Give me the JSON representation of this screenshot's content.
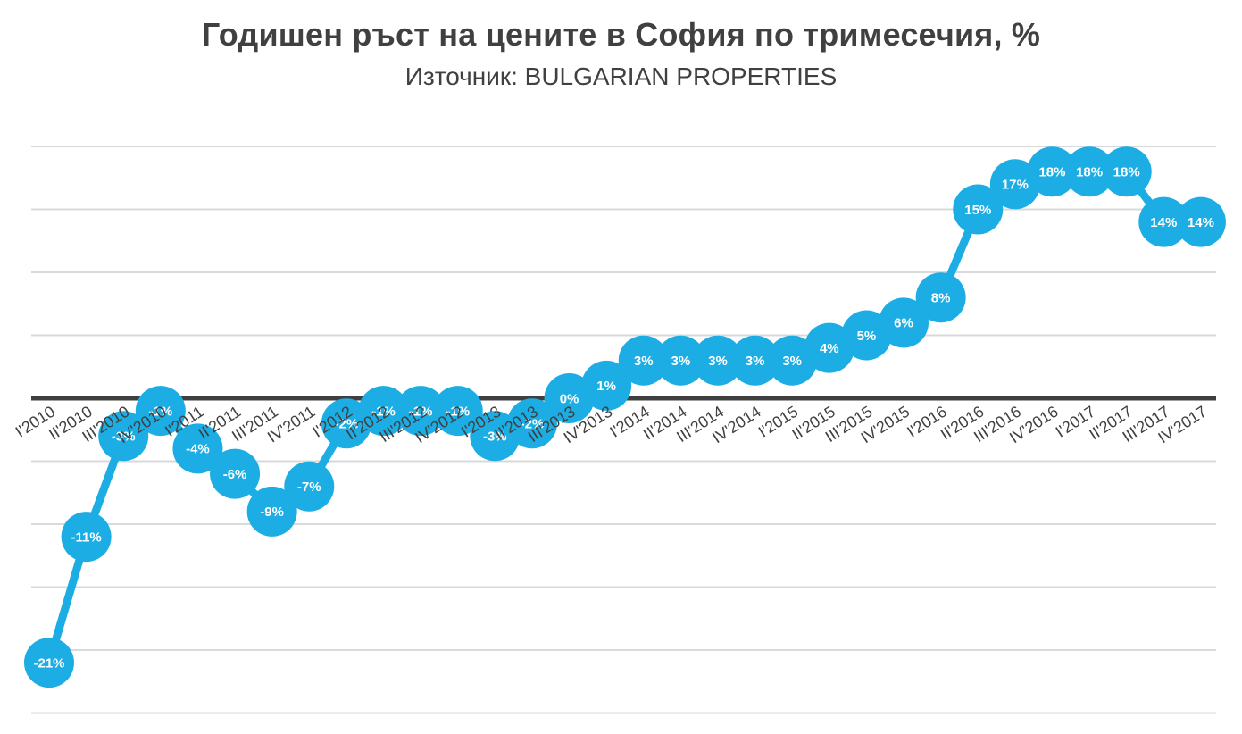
{
  "chart_data": {
    "type": "line",
    "title": "Годишен ръст на цените в София по тримесечия, %",
    "subtitle": "Източник: BULGARIAN PROPERTIES",
    "categories": [
      "I'2010",
      "II'2010",
      "III'2010",
      "IV'2010",
      "I'2011",
      "II'2011",
      "III'2011",
      "IV'2011",
      "I'2012",
      "II'2012",
      "III'2012",
      "IV'2012",
      "I'2013",
      "II'2013",
      "III'2013",
      "IV'2013",
      "I'2014",
      "II'2014",
      "III'2014",
      "IV'2014",
      "I'2015",
      "II'2015",
      "III'2015",
      "IV'2015",
      "I'2016",
      "II'2016",
      "III'2016",
      "IV'2016",
      "I'2017",
      "II'2017",
      "III'2017",
      "IV'2017"
    ],
    "values": [
      -21,
      -11,
      -3,
      -1,
      -4,
      -6,
      -9,
      -7,
      -2,
      -1,
      -1,
      -1,
      -3,
      -2,
      0,
      1,
      3,
      3,
      3,
      3,
      3,
      4,
      5,
      6,
      8,
      15,
      17,
      18,
      18,
      18,
      14,
      14
    ],
    "data_labels": [
      "-21%",
      "-11%",
      "-3%",
      "-1%",
      "-4%",
      "-6%",
      "-9%",
      "-7%",
      "-2%",
      "-1%",
      "-1%",
      "-1%",
      "-3%",
      "-2%",
      "0%",
      "1%",
      "3%",
      "3%",
      "3%",
      "3%",
      "3%",
      "4%",
      "5%",
      "6%",
      "8%",
      "15%",
      "17%",
      "18%",
      "18%",
      "18%",
      "14%",
      "14%"
    ],
    "xlabel": "",
    "ylabel": "",
    "ylim": [
      -25,
      20
    ],
    "grid_step": 5,
    "grid": "horizontal light gray lines, no y tick labels, thick dark zero axis, x labels rotated on zero axis",
    "legend": "none",
    "colors": {
      "marker": "#1CADE4",
      "line": "#1CADE4",
      "marker_text": "#FFFFFF",
      "zero_line": "#3F3F3F",
      "gridline": "#D9D9D9",
      "axis_label": "#404040",
      "title_text": "#404040"
    }
  }
}
